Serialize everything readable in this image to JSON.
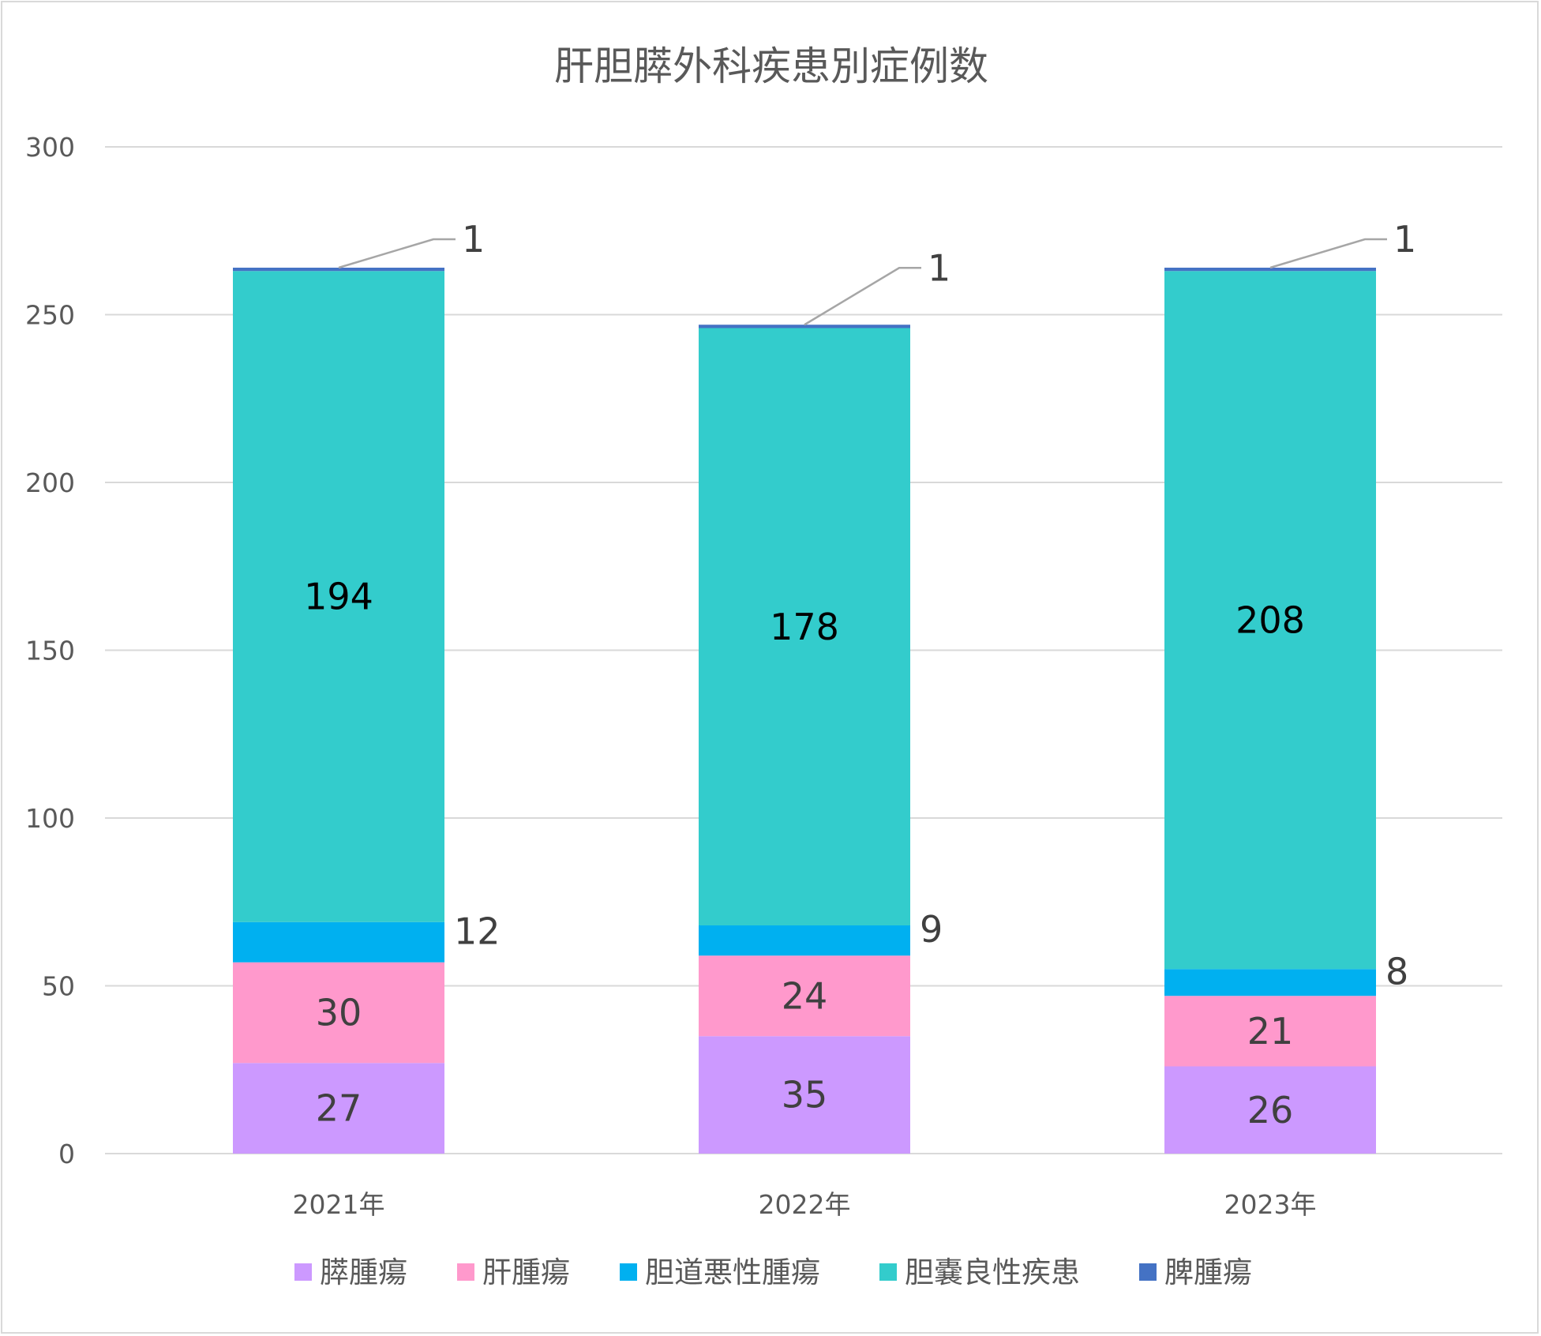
{
  "chart_data": {
    "type": "bar",
    "stacked": true,
    "title": "肝胆膵外科疾患別症例数",
    "categories": [
      "2021年",
      "2022年",
      "2023年"
    ],
    "ylim": [
      0,
      300
    ],
    "yticks": [
      0,
      50,
      100,
      150,
      200,
      250,
      300
    ],
    "grid": true,
    "legend_position": "bottom",
    "series": [
      {
        "name": "膵腫瘍",
        "color": "#cc99ff",
        "values": [
          27,
          35,
          26
        ]
      },
      {
        "name": "肝腫瘍",
        "color": "#ff99cc",
        "values": [
          30,
          24,
          21
        ]
      },
      {
        "name": "胆道悪性腫瘍",
        "color": "#00b0f0",
        "values": [
          12,
          9,
          8
        ]
      },
      {
        "name": "胆嚢良性疾患",
        "color": "#33cccc",
        "values": [
          194,
          178,
          208
        ]
      },
      {
        "name": "脾腫瘍",
        "color": "#4472c4",
        "values": [
          1,
          1,
          1
        ]
      }
    ]
  }
}
